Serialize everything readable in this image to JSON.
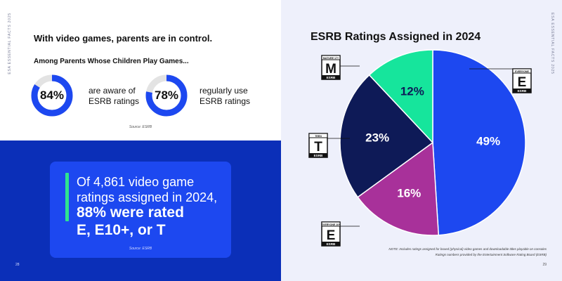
{
  "left_page": {
    "vertical_label": "ESA ESSENTIAL FACTS 2025",
    "headline": "With video games, parents are in control.",
    "subhead": "Among Parents Whose Children Play Games...",
    "stats": [
      {
        "value": 84,
        "value_label": "84%",
        "line1": "are aware of",
        "line2": "ESRB ratings"
      },
      {
        "value": 78,
        "value_label": "78%",
        "line1": "regularly use",
        "line2": "ESRB ratings"
      }
    ],
    "source_top": "Source: ESRB",
    "callout": {
      "line1": "Of 4,861 video game",
      "line2": "ratings assigned in 2024,",
      "bold1": "88% were rated",
      "bold2": "E, E10+, or T"
    },
    "source_bottom": "Source: ESRB",
    "page_number": "28"
  },
  "right_page": {
    "vertical_label": "ESA ESSENTIAL FACTS 2025",
    "note_line1": "NOTE: Includes ratings assigned for boxed (physical) video games and downloadable titles playable on consoles",
    "note_line2": "Ratings numbers provided by the Entertainment Software Rating Board (ESRB)",
    "page_number": "29",
    "esrb_brand": "ESRB"
  },
  "colors": {
    "donut_fill": "#1d48f0",
    "donut_track": "#e3e3e3",
    "blue_block": "#0b2fb8",
    "accent_green": "#2fe38f"
  },
  "chart_data": {
    "type": "pie",
    "title": "ESRB Ratings Assigned in 2024",
    "slices": [
      {
        "name": "Everyone",
        "value": 49,
        "label": "49%",
        "color": "#1d48f0",
        "icon_letter": "E",
        "icon_header": "EVERYONE",
        "text_color": "#ffffff"
      },
      {
        "name": "Everyone 10+",
        "value": 16,
        "label": "16%",
        "color": "#a8319a",
        "icon_letter": "E",
        "icon_header": "EVERYONE 10+",
        "text_color": "#ffffff"
      },
      {
        "name": "Teen",
        "value": 23,
        "label": "23%",
        "color": "#0e1a57",
        "icon_letter": "T",
        "icon_header": "TEEN",
        "text_color": "#ffffff"
      },
      {
        "name": "Mature 17+",
        "value": 12,
        "label": "12%",
        "color": "#16e59c",
        "icon_letter": "M",
        "icon_header": "MATURE 17+",
        "text_color": "#0e1a57"
      }
    ]
  }
}
